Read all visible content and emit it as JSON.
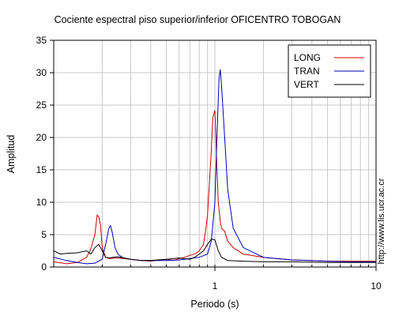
{
  "side_url": "http://www.lis.ucr.ac.cr",
  "chart_data": {
    "type": "line",
    "title": "Cociente espectral piso superior/inferior OFICENTRO TOBOGAN",
    "xlabel": "Periodo (s)",
    "ylabel": "Amplitud",
    "xscale": "log",
    "xlim": [
      0.1,
      10
    ],
    "ylim": [
      0,
      35
    ],
    "xticks": [
      1,
      10
    ],
    "xticklabels": [
      "1",
      "10"
    ],
    "yticks": [
      0,
      5,
      10,
      15,
      20,
      25,
      30,
      35
    ],
    "grid": true,
    "legend_position": "top-right",
    "series": [
      {
        "name": "LONG",
        "color": "#cc0000",
        "x": [
          0.1,
          0.12,
          0.14,
          0.16,
          0.17,
          0.18,
          0.186,
          0.19,
          0.195,
          0.2,
          0.21,
          0.22,
          0.25,
          0.3,
          0.35,
          0.4,
          0.45,
          0.5,
          0.55,
          0.6,
          0.65,
          0.7,
          0.75,
          0.8,
          0.85,
          0.88,
          0.9,
          0.92,
          0.95,
          0.97,
          1.0,
          1.02,
          1.05,
          1.08,
          1.1,
          1.15,
          1.2,
          1.3,
          1.5,
          2.0,
          3.0,
          4.0,
          5.0,
          7.0,
          10.0
        ],
        "y": [
          0.8,
          0.5,
          0.7,
          1.5,
          2.8,
          5.0,
          8.0,
          7.8,
          6.5,
          3.0,
          1.5,
          1.3,
          1.4,
          1.2,
          1.0,
          0.9,
          1.1,
          1.2,
          1.0,
          1.3,
          1.5,
          1.8,
          2.0,
          2.5,
          3.5,
          6.0,
          8.0,
          12.0,
          18.0,
          23.0,
          24.2,
          18.0,
          10.0,
          7.0,
          6.0,
          5.5,
          4.0,
          3.0,
          2.0,
          1.5,
          1.1,
          1.0,
          0.9,
          0.9,
          0.9
        ]
      },
      {
        "name": "TRAN",
        "color": "#0000bb",
        "x": [
          0.1,
          0.12,
          0.14,
          0.16,
          0.18,
          0.2,
          0.21,
          0.22,
          0.225,
          0.23,
          0.24,
          0.25,
          0.27,
          0.3,
          0.35,
          0.4,
          0.5,
          0.6,
          0.7,
          0.8,
          0.9,
          0.95,
          1.0,
          1.03,
          1.06,
          1.08,
          1.1,
          1.15,
          1.2,
          1.3,
          1.5,
          2.0,
          3.0,
          5.0,
          7.0,
          10.0
        ],
        "y": [
          1.5,
          1.0,
          0.7,
          0.5,
          0.6,
          1.2,
          3.5,
          6.0,
          6.4,
          5.5,
          3.0,
          2.0,
          1.4,
          1.2,
          1.0,
          1.0,
          1.0,
          1.1,
          1.3,
          1.5,
          2.0,
          4.0,
          10.0,
          20.0,
          29.0,
          30.5,
          28.0,
          20.0,
          12.0,
          6.0,
          3.0,
          1.5,
          1.1,
          0.9,
          0.8,
          0.8
        ]
      },
      {
        "name": "VERT",
        "color": "#000000",
        "x": [
          0.1,
          0.11,
          0.12,
          0.14,
          0.16,
          0.17,
          0.18,
          0.19,
          0.2,
          0.21,
          0.22,
          0.25,
          0.3,
          0.35,
          0.4,
          0.5,
          0.6,
          0.7,
          0.75,
          0.8,
          0.85,
          0.9,
          0.95,
          1.0,
          1.05,
          1.1,
          1.2,
          1.5,
          2.0,
          3.0,
          5.0,
          10.0
        ],
        "y": [
          2.5,
          2.0,
          2.1,
          2.2,
          2.5,
          2.0,
          3.0,
          3.5,
          2.5,
          1.5,
          1.4,
          1.6,
          1.2,
          1.0,
          1.0,
          1.2,
          1.4,
          1.2,
          1.5,
          2.0,
          2.5,
          3.5,
          4.3,
          4.2,
          2.5,
          1.5,
          1.0,
          0.9,
          0.8,
          0.8,
          0.7,
          0.7
        ]
      }
    ]
  }
}
